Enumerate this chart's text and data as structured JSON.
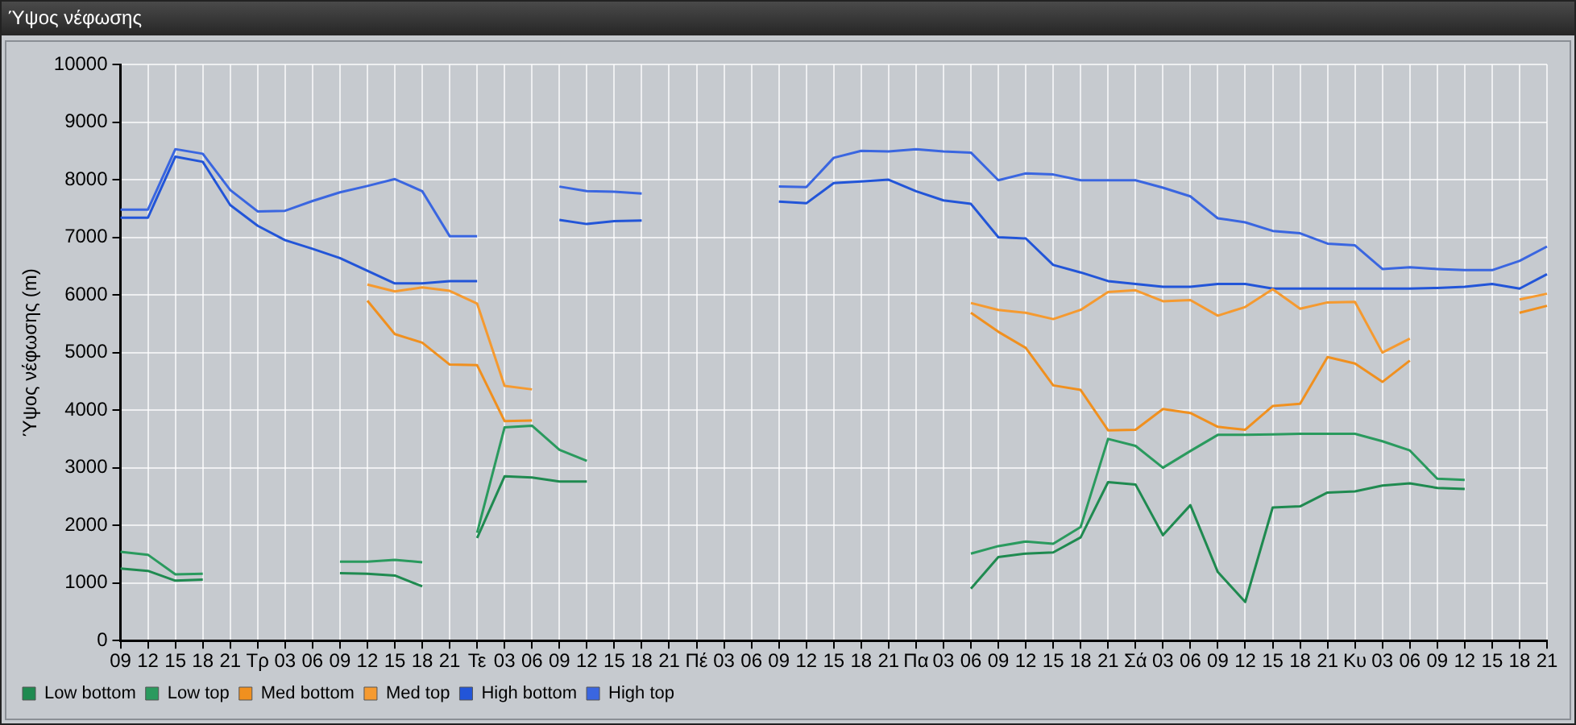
{
  "chart_data": {
    "type": "line",
    "title": "Ύψος νέφωσης",
    "ylabel": "Ύψος νέφωσης (m)",
    "categories": [
      "09",
      "12",
      "15",
      "18",
      "21",
      "Τρ",
      "03",
      "06",
      "09",
      "12",
      "15",
      "18",
      "21",
      "Τε",
      "03",
      "06",
      "09",
      "12",
      "15",
      "18",
      "21",
      "Πέ",
      "03",
      "06",
      "09",
      "12",
      "15",
      "18",
      "21",
      "Πα",
      "03",
      "06",
      "09",
      "12",
      "15",
      "18",
      "21",
      "Σά",
      "03",
      "06",
      "09",
      "12",
      "15",
      "18",
      "21",
      "Κυ",
      "03",
      "06",
      "09",
      "12",
      "15",
      "18",
      "21"
    ],
    "ylim": [
      0,
      10000
    ],
    "yticks": [
      0,
      1000,
      2000,
      3000,
      4000,
      5000,
      6000,
      7000,
      8000,
      9000,
      10000
    ],
    "grid": true,
    "legend": "bottom",
    "marker": "none",
    "series": [
      {
        "name": "Low bottom",
        "color": "#1f8a50",
        "values": [
          1250,
          1210,
          1040,
          1060,
          null,
          null,
          null,
          null,
          1170,
          1160,
          1130,
          940,
          null,
          1780,
          2850,
          2830,
          2760,
          2760,
          null,
          null,
          null,
          null,
          null,
          null,
          null,
          null,
          null,
          null,
          null,
          null,
          null,
          900,
          1450,
          1510,
          1530,
          1790,
          2750,
          2710,
          1830,
          2350,
          1190,
          670,
          2310,
          2330,
          2570,
          2590,
          2690,
          2730,
          2650,
          2630,
          null,
          null,
          null
        ]
      },
      {
        "name": "Low top",
        "color": "#2a9a5e",
        "values": [
          1540,
          1490,
          1150,
          1160,
          null,
          null,
          null,
          null,
          1370,
          1370,
          1400,
          1360,
          null,
          1870,
          3700,
          3730,
          3310,
          3120,
          null,
          null,
          null,
          null,
          null,
          null,
          null,
          null,
          null,
          null,
          null,
          null,
          null,
          1510,
          1640,
          1720,
          1680,
          1970,
          3500,
          3380,
          3000,
          3290,
          3570,
          3570,
          3580,
          3590,
          3590,
          3590,
          3460,
          3300,
          2810,
          2790,
          null,
          null,
          null
        ]
      },
      {
        "name": "Med bottom",
        "color": "#f0901f",
        "values": [
          null,
          null,
          null,
          null,
          null,
          null,
          null,
          null,
          null,
          5900,
          5320,
          5170,
          4790,
          4780,
          3810,
          3820,
          null,
          null,
          null,
          null,
          null,
          null,
          null,
          null,
          null,
          null,
          null,
          null,
          null,
          null,
          null,
          5690,
          5360,
          5080,
          4430,
          4350,
          3650,
          3660,
          4020,
          3950,
          3710,
          3660,
          4070,
          4110,
          4920,
          4810,
          4490,
          4860,
          null,
          null,
          null,
          5690,
          5810
        ]
      },
      {
        "name": "Med top",
        "color": "#f59a30",
        "values": [
          null,
          null,
          null,
          null,
          null,
          null,
          null,
          null,
          null,
          6180,
          6060,
          6130,
          6070,
          5850,
          4420,
          4360,
          null,
          null,
          null,
          null,
          null,
          null,
          null,
          null,
          null,
          null,
          null,
          null,
          null,
          null,
          null,
          5860,
          5740,
          5690,
          5580,
          5740,
          6050,
          6080,
          5890,
          5910,
          5640,
          5790,
          6100,
          5760,
          5870,
          5880,
          5000,
          5240,
          null,
          null,
          null,
          5920,
          6020
        ]
      },
      {
        "name": "High bottom",
        "color": "#2255d8",
        "values": [
          7340,
          7340,
          8400,
          8310,
          7560,
          7200,
          6950,
          6800,
          6640,
          6420,
          6200,
          6200,
          6240,
          6240,
          null,
          null,
          7300,
          7230,
          7280,
          7290,
          null,
          null,
          null,
          null,
          7620,
          7590,
          7940,
          7970,
          8000,
          7800,
          7640,
          7580,
          7000,
          6980,
          6520,
          6390,
          6240,
          6190,
          6140,
          6140,
          6190,
          6190,
          6110,
          6110,
          6110,
          6110,
          6110,
          6110,
          6120,
          6140,
          6190,
          6110,
          6360
        ]
      },
      {
        "name": "High top",
        "color": "#3a66e0",
        "values": [
          7480,
          7480,
          8530,
          8450,
          7820,
          7450,
          7460,
          7630,
          7780,
          7890,
          8010,
          7800,
          7020,
          7020,
          null,
          null,
          7880,
          7800,
          7790,
          7760,
          null,
          null,
          null,
          null,
          7880,
          7870,
          8380,
          8500,
          8490,
          8530,
          8490,
          8470,
          7990,
          8110,
          8090,
          7990,
          7990,
          7990,
          7860,
          7710,
          7330,
          7260,
          7110,
          7070,
          6890,
          6860,
          6450,
          6480,
          6450,
          6430,
          6430,
          6590,
          6840
        ]
      }
    ]
  }
}
